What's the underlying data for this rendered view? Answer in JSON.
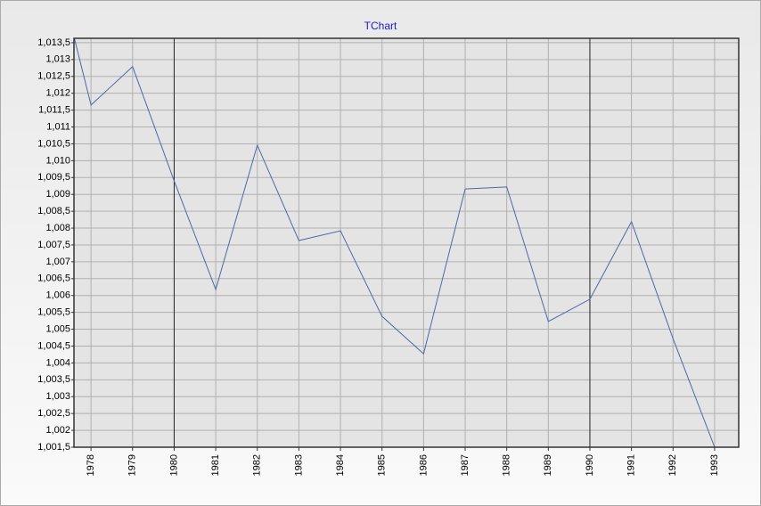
{
  "chart_data": {
    "type": "line",
    "title": "TChart",
    "x": [
      1977.6,
      1978,
      1979,
      1980,
      1981,
      1982,
      1983,
      1984,
      1985,
      1986,
      1987,
      1988,
      1989,
      1990,
      1991,
      1992,
      1993
    ],
    "series": [
      {
        "color": "#4a6aa8",
        "values": [
          1013.63,
          1011.65,
          1012.79,
          1009.4,
          1006.18,
          1010.46,
          1007.63,
          1007.92,
          1005.38,
          1004.27,
          1009.16,
          1009.22,
          1005.23,
          1005.89,
          1008.19,
          1004.72,
          1001.5
        ]
      }
    ],
    "xlim": [
      1977.59,
      1993.58
    ],
    "xticks": [
      1978,
      1979,
      1980,
      1981,
      1982,
      1983,
      1984,
      1985,
      1986,
      1987,
      1988,
      1989,
      1990,
      1991,
      1992,
      1993
    ],
    "ylim": [
      1001.5,
      1013.63
    ],
    "yticks": [
      {
        "value": 1001.5,
        "label": "1,001,5"
      },
      {
        "value": 1002,
        "label": "1,002"
      },
      {
        "value": 1002.5,
        "label": "1,002,5"
      },
      {
        "value": 1003,
        "label": "1,003"
      },
      {
        "value": 1003.5,
        "label": "1,003,5"
      },
      {
        "value": 1004,
        "label": "1,004"
      },
      {
        "value": 1004.5,
        "label": "1,004,5"
      },
      {
        "value": 1005,
        "label": "1,005"
      },
      {
        "value": 1005.5,
        "label": "1,005,5"
      },
      {
        "value": 1006,
        "label": "1,006"
      },
      {
        "value": 1006.5,
        "label": "1,006,5"
      },
      {
        "value": 1007,
        "label": "1,007"
      },
      {
        "value": 1007.5,
        "label": "1,007,5"
      },
      {
        "value": 1008,
        "label": "1,008"
      },
      {
        "value": 1008.5,
        "label": "1,008,5"
      },
      {
        "value": 1009,
        "label": "1,009"
      },
      {
        "value": 1009.5,
        "label": "1,009,5"
      },
      {
        "value": 1010,
        "label": "1,010"
      },
      {
        "value": 1010.5,
        "label": "1,010,5"
      },
      {
        "value": 1011,
        "label": "1,011"
      },
      {
        "value": 1011.5,
        "label": "1,011,5"
      },
      {
        "value": 1012,
        "label": "1,012"
      },
      {
        "value": 1012.5,
        "label": "1,012,5"
      },
      {
        "value": 1013,
        "label": "1,013"
      },
      {
        "value": 1013.5,
        "label": "1,013,5"
      }
    ],
    "grid": true
  }
}
